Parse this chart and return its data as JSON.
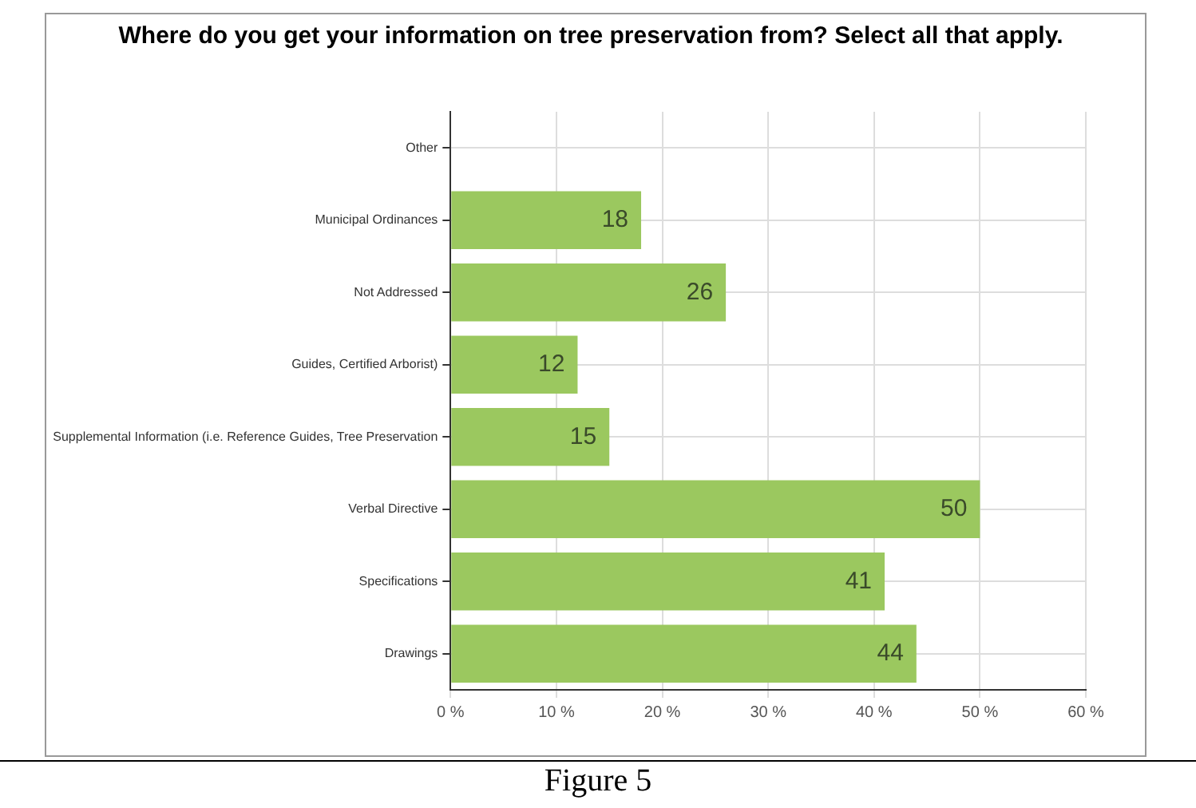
{
  "chart_data": {
    "type": "bar",
    "orientation": "horizontal",
    "title": "Where do you get your information on tree preservation from?  Select all that apply.",
    "categories": [
      "Other",
      "Municipal Ordinances",
      "Not Addressed",
      "Guides, Certified Arborist)",
      "Supplemental Information (i.e. Reference Guides, Tree Preservation",
      "Verbal Directive",
      "Specifications",
      "Drawings"
    ],
    "values": [
      null,
      18,
      26,
      12,
      15,
      50,
      41,
      44
    ],
    "color": "#9bc85f",
    "xlim": [
      0,
      60
    ],
    "xticks": [
      {
        "value": 0,
        "label": "0 %"
      },
      {
        "value": 10,
        "label": "10 %"
      },
      {
        "value": 20,
        "label": "20 %"
      },
      {
        "value": 30,
        "label": "30 %"
      },
      {
        "value": 40,
        "label": "40 %"
      },
      {
        "value": 50,
        "label": "50 %"
      },
      {
        "value": 60,
        "label": "60 %"
      }
    ],
    "grid": true,
    "data_labels": true,
    "annotations": [
      "Figure 5"
    ]
  }
}
